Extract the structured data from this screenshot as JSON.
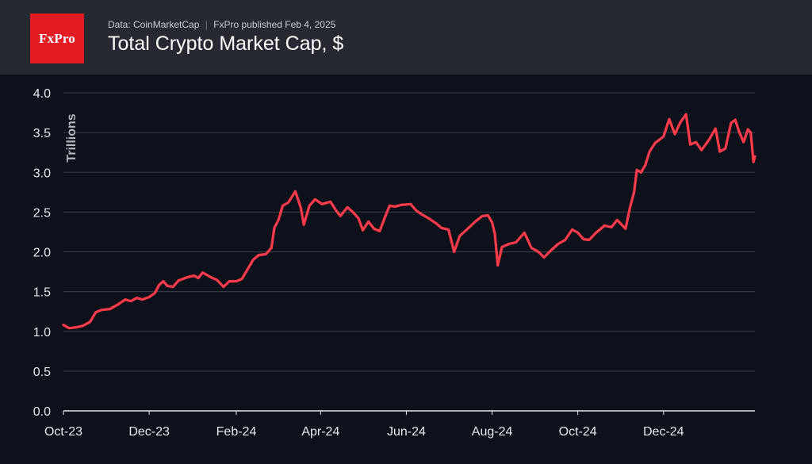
{
  "header": {
    "logo_text": "FxPro",
    "source": "Data: CoinMarketCap",
    "published": "FxPro published Feb 4, 2025",
    "separator": "|",
    "title": "Total Crypto Market Cap, $"
  },
  "colors": {
    "background": "#0c111c",
    "header_background": "#262932",
    "logo_red": "#e31b23",
    "line": "#ff3b4a",
    "grid": "#3a3e48"
  },
  "chart_data": {
    "type": "line",
    "title": "Total Crypto Market Cap, $",
    "xlabel": "",
    "ylabel": "Trillions",
    "ylim": [
      0,
      4.0
    ],
    "y_ticks": [
      "0.0",
      "0.5",
      "1.0",
      "1.5",
      "2.0",
      "2.5",
      "3.0",
      "3.5",
      "4.0"
    ],
    "x_ticks": [
      {
        "label": "Oct-23",
        "date": "2023-10-01"
      },
      {
        "label": "Dec-23",
        "date": "2023-12-01"
      },
      {
        "label": "Feb-24",
        "date": "2024-02-01"
      },
      {
        "label": "Apr-24",
        "date": "2024-04-01"
      },
      {
        "label": "Jun-24",
        "date": "2024-06-01"
      },
      {
        "label": "Aug-24",
        "date": "2024-08-01"
      },
      {
        "label": "Oct-24",
        "date": "2024-10-01"
      },
      {
        "label": "Dec-24",
        "date": "2024-12-01"
      }
    ],
    "grid": true,
    "legend": "none",
    "series": [
      {
        "points": [
          [
            "2023-10-01",
            1.08
          ],
          [
            "2023-10-05",
            1.04
          ],
          [
            "2023-10-10",
            1.05
          ],
          [
            "2023-10-15",
            1.07
          ],
          [
            "2023-10-20",
            1.12
          ],
          [
            "2023-10-24",
            1.24
          ],
          [
            "2023-10-28",
            1.27
          ],
          [
            "2023-11-03",
            1.28
          ],
          [
            "2023-11-09",
            1.34
          ],
          [
            "2023-11-14",
            1.4
          ],
          [
            "2023-11-18",
            1.38
          ],
          [
            "2023-11-22",
            1.42
          ],
          [
            "2023-11-26",
            1.4
          ],
          [
            "2023-12-01",
            1.43
          ],
          [
            "2023-12-05",
            1.48
          ],
          [
            "2023-12-08",
            1.58
          ],
          [
            "2023-12-11",
            1.63
          ],
          [
            "2023-12-14",
            1.57
          ],
          [
            "2023-12-18",
            1.56
          ],
          [
            "2023-12-22",
            1.64
          ],
          [
            "2023-12-28",
            1.68
          ],
          [
            "2024-01-02",
            1.7
          ],
          [
            "2024-01-05",
            1.67
          ],
          [
            "2024-01-08",
            1.74
          ],
          [
            "2024-01-11",
            1.71
          ],
          [
            "2024-01-15",
            1.67
          ],
          [
            "2024-01-18",
            1.65
          ],
          [
            "2024-01-23",
            1.56
          ],
          [
            "2024-01-27",
            1.63
          ],
          [
            "2024-02-01",
            1.63
          ],
          [
            "2024-02-05",
            1.66
          ],
          [
            "2024-02-09",
            1.78
          ],
          [
            "2024-02-13",
            1.9
          ],
          [
            "2024-02-17",
            1.96
          ],
          [
            "2024-02-22",
            1.97
          ],
          [
            "2024-02-26",
            2.05
          ],
          [
            "2024-02-28",
            2.3
          ],
          [
            "2024-03-02",
            2.4
          ],
          [
            "2024-03-05",
            2.58
          ],
          [
            "2024-03-09",
            2.62
          ],
          [
            "2024-03-14",
            2.76
          ],
          [
            "2024-03-18",
            2.55
          ],
          [
            "2024-03-20",
            2.34
          ],
          [
            "2024-03-24",
            2.58
          ],
          [
            "2024-03-28",
            2.66
          ],
          [
            "2024-04-02",
            2.6
          ],
          [
            "2024-04-08",
            2.63
          ],
          [
            "2024-04-12",
            2.52
          ],
          [
            "2024-04-15",
            2.45
          ],
          [
            "2024-04-20",
            2.56
          ],
          [
            "2024-04-24",
            2.5
          ],
          [
            "2024-04-28",
            2.42
          ],
          [
            "2024-05-01",
            2.27
          ],
          [
            "2024-05-05",
            2.38
          ],
          [
            "2024-05-09",
            2.29
          ],
          [
            "2024-05-13",
            2.26
          ],
          [
            "2024-05-16",
            2.4
          ],
          [
            "2024-05-20",
            2.58
          ],
          [
            "2024-05-24",
            2.57
          ],
          [
            "2024-05-28",
            2.59
          ],
          [
            "2024-06-04",
            2.6
          ],
          [
            "2024-06-08",
            2.52
          ],
          [
            "2024-06-12",
            2.47
          ],
          [
            "2024-06-17",
            2.42
          ],
          [
            "2024-06-22",
            2.36
          ],
          [
            "2024-06-26",
            2.3
          ],
          [
            "2024-07-01",
            2.28
          ],
          [
            "2024-07-05",
            2.0
          ],
          [
            "2024-07-09",
            2.2
          ],
          [
            "2024-07-14",
            2.28
          ],
          [
            "2024-07-20",
            2.38
          ],
          [
            "2024-07-25",
            2.45
          ],
          [
            "2024-07-29",
            2.46
          ],
          [
            "2024-08-01",
            2.37
          ],
          [
            "2024-08-03",
            2.22
          ],
          [
            "2024-08-05",
            1.83
          ],
          [
            "2024-08-08",
            2.06
          ],
          [
            "2024-08-13",
            2.1
          ],
          [
            "2024-08-18",
            2.12
          ],
          [
            "2024-08-24",
            2.24
          ],
          [
            "2024-08-29",
            2.05
          ],
          [
            "2024-09-03",
            2.0
          ],
          [
            "2024-09-07",
            1.93
          ],
          [
            "2024-09-12",
            2.02
          ],
          [
            "2024-09-17",
            2.1
          ],
          [
            "2024-09-22",
            2.15
          ],
          [
            "2024-09-27",
            2.28
          ],
          [
            "2024-10-01",
            2.24
          ],
          [
            "2024-10-05",
            2.16
          ],
          [
            "2024-10-09",
            2.15
          ],
          [
            "2024-10-14",
            2.24
          ],
          [
            "2024-10-20",
            2.33
          ],
          [
            "2024-10-25",
            2.31
          ],
          [
            "2024-10-29",
            2.4
          ],
          [
            "2024-11-04",
            2.29
          ],
          [
            "2024-11-07",
            2.55
          ],
          [
            "2024-11-10",
            2.75
          ],
          [
            "2024-11-12",
            3.03
          ],
          [
            "2024-11-15",
            3.0
          ],
          [
            "2024-11-18",
            3.09
          ],
          [
            "2024-11-21",
            3.26
          ],
          [
            "2024-11-25",
            3.37
          ],
          [
            "2024-12-01",
            3.45
          ],
          [
            "2024-12-05",
            3.67
          ],
          [
            "2024-12-09",
            3.48
          ],
          [
            "2024-12-13",
            3.63
          ],
          [
            "2024-12-17",
            3.73
          ],
          [
            "2024-12-20",
            3.35
          ],
          [
            "2024-12-24",
            3.38
          ],
          [
            "2024-12-28",
            3.28
          ],
          [
            "2025-01-02",
            3.4
          ],
          [
            "2025-01-07",
            3.55
          ],
          [
            "2025-01-10",
            3.26
          ],
          [
            "2025-01-14",
            3.3
          ],
          [
            "2025-01-18",
            3.62
          ],
          [
            "2025-01-21",
            3.66
          ],
          [
            "2025-01-24",
            3.5
          ],
          [
            "2025-01-27",
            3.38
          ],
          [
            "2025-01-30",
            3.54
          ],
          [
            "2025-02-01",
            3.5
          ],
          [
            "2025-02-03",
            3.13
          ],
          [
            "2025-02-04",
            3.2
          ]
        ]
      }
    ]
  }
}
